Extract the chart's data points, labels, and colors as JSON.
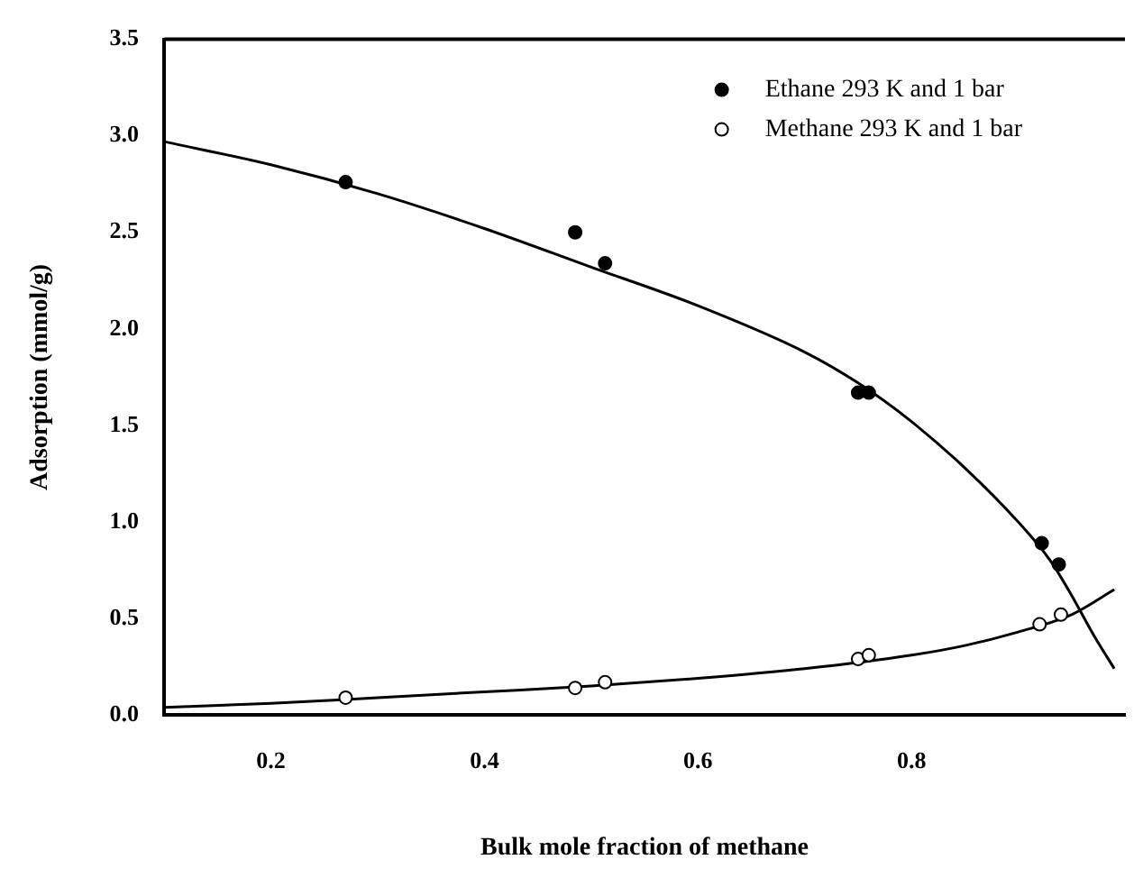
{
  "chart_data": {
    "type": "scatter",
    "xlabel": "Bulk mole fraction of methane",
    "ylabel": "Adsorption (mmol/g)",
    "xlim": [
      0.1,
      1.0
    ],
    "xticks": [
      0.2,
      0.4,
      0.6,
      0.8
    ],
    "ylim": [
      0,
      3.5
    ],
    "yticks": [
      {
        "value": 0,
        "label": "0.0"
      },
      0.5,
      {
        "value": 1,
        "label": "1.0"
      },
      1.5,
      {
        "value": 2,
        "label": "2.0"
      },
      2.5,
      {
        "value": 3,
        "label": "3.0"
      },
      3.5
    ],
    "grid": false,
    "legend": "top right",
    "series": [
      {
        "name": "Ethane 293 K and 1 bar",
        "type": "scatter",
        "marker": "circle",
        "color": "#000000",
        "x": [
          0.27,
          0.485,
          0.513,
          0.75,
          0.76,
          0.922,
          0.938
        ],
        "values": [
          2.76,
          2.5,
          2.34,
          1.67,
          1.67,
          0.89,
          0.78
        ]
      },
      {
        "name": "Methane 293 K and 1 bar",
        "type": "scatter",
        "marker": "circle",
        "color": "#ffffff",
        "x": [
          0.27,
          0.485,
          0.513,
          0.75,
          0.76,
          0.92,
          0.94
        ],
        "values": [
          0.09,
          0.14,
          0.17,
          0.29,
          0.31,
          0.47,
          0.52
        ]
      },
      {
        "type": "line",
        "marker": "none",
        "color": "#000000",
        "x": [
          0.1,
          0.2,
          0.3,
          0.4,
          0.5,
          0.6,
          0.7,
          0.75,
          0.8,
          0.85,
          0.9,
          0.93,
          0.95,
          0.97,
          0.99
        ],
        "values": [
          2.97,
          2.85,
          2.7,
          2.52,
          2.32,
          2.12,
          1.88,
          1.72,
          1.52,
          1.28,
          1.0,
          0.8,
          0.62,
          0.42,
          0.24
        ]
      },
      {
        "type": "line",
        "marker": "none",
        "color": "#000000",
        "x": [
          0.1,
          0.2,
          0.3,
          0.4,
          0.5,
          0.6,
          0.7,
          0.8,
          0.85,
          0.9,
          0.95,
          0.99
        ],
        "values": [
          0.04,
          0.06,
          0.09,
          0.12,
          0.15,
          0.19,
          0.24,
          0.31,
          0.36,
          0.43,
          0.52,
          0.65
        ]
      }
    ]
  }
}
